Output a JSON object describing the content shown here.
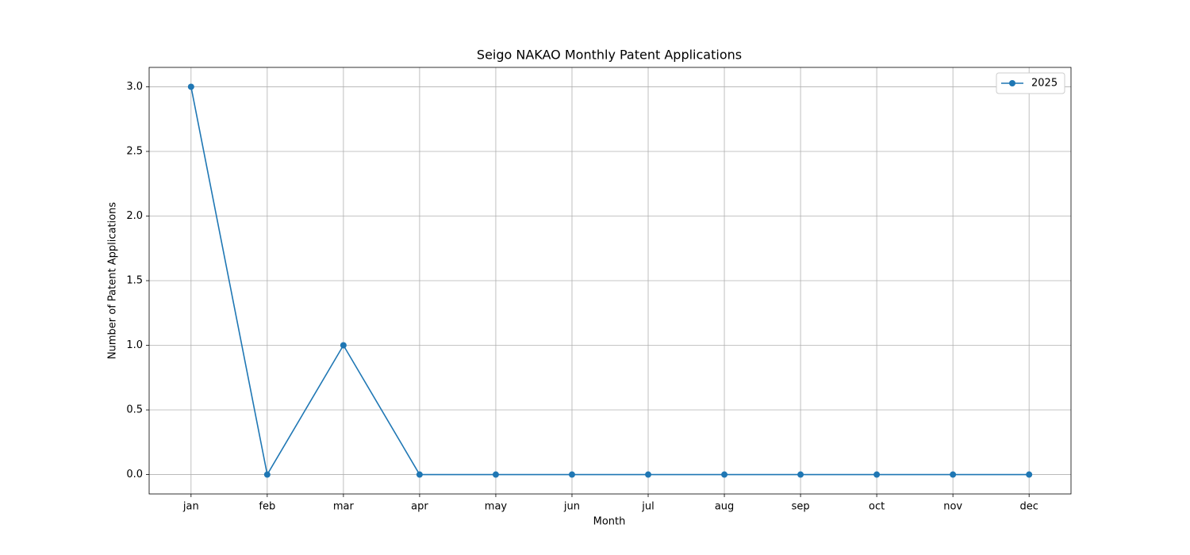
{
  "chart_data": {
    "type": "line",
    "title": "Seigo NAKAO Monthly Patent Applications",
    "x_label": "Month",
    "y_label": "Number of Patent Applications",
    "categories": [
      "jan",
      "feb",
      "mar",
      "apr",
      "may",
      "jun",
      "jul",
      "aug",
      "sep",
      "oct",
      "nov",
      "dec"
    ],
    "series": [
      {
        "name": "2025",
        "color": "#1f77b4",
        "values": [
          3,
          0,
          1,
          0,
          0,
          0,
          0,
          0,
          0,
          0,
          0,
          0
        ]
      }
    ],
    "ylim": [
      -0.15,
      3.15
    ],
    "yticks": [
      {
        "value": 0,
        "label": "0.0"
      },
      {
        "value": 0.5,
        "label": "0.5"
      },
      {
        "value": 1,
        "label": "1.0"
      },
      {
        "value": 1.5,
        "label": "1.5"
      },
      {
        "value": 2,
        "label": "2.0"
      },
      {
        "value": 2.5,
        "label": "2.5"
      },
      {
        "value": 3,
        "label": "3.0"
      }
    ],
    "grid": true,
    "legend": "upper right"
  }
}
